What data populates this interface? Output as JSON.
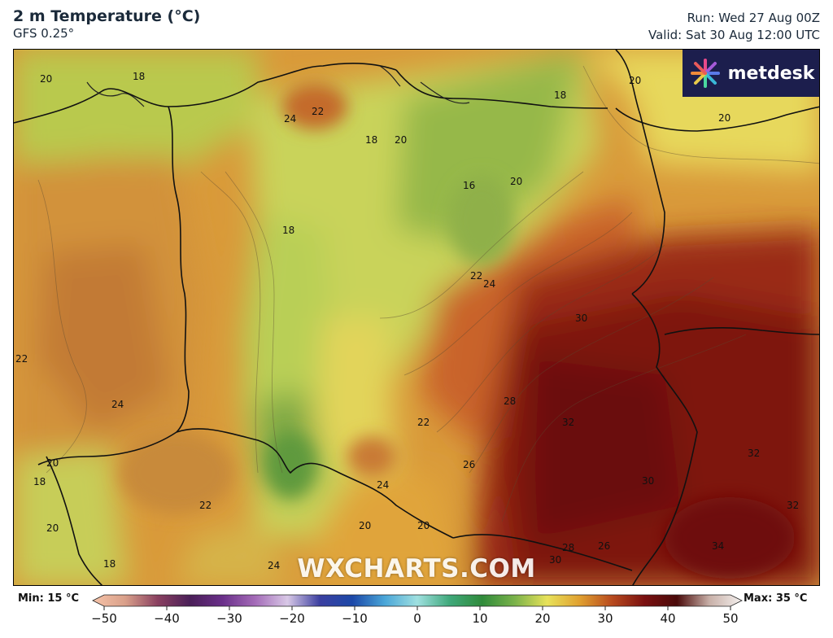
{
  "header": {
    "title": "2 m Temperature (°C)",
    "model": "GFS 0.25°",
    "run": "Run: Wed 27 Aug 00Z",
    "valid": "Valid: Sat 30 Aug 12:00 UTC"
  },
  "branding": {
    "logo_text": "metdesk",
    "watermark": "WXCHARTS.COM",
    "logo_bg": "#1c1e4d"
  },
  "legend": {
    "min_label": "Min: 15 °C",
    "max_label": "Max: 35 °C",
    "ticks": [
      "−50",
      "−40",
      "−30",
      "−20",
      "−10",
      "0",
      "10",
      "20",
      "30",
      "40",
      "50"
    ],
    "colorscale": [
      {
        "value": -50,
        "color": "#f6c3a8"
      },
      {
        "value": -45,
        "color": "#d9a08a"
      },
      {
        "value": -40,
        "color": "#8a4060"
      },
      {
        "value": -35,
        "color": "#4a1f58"
      },
      {
        "value": -30,
        "color": "#6a2f8a"
      },
      {
        "value": -25,
        "color": "#a46bb8"
      },
      {
        "value": -20,
        "color": "#d8c8e6"
      },
      {
        "value": -15,
        "color": "#3b3fa0"
      },
      {
        "value": -10,
        "color": "#1c48a8"
      },
      {
        "value": -5,
        "color": "#4aa6d8"
      },
      {
        "value": 0,
        "color": "#9fe0e0"
      },
      {
        "value": 5,
        "color": "#3fa87a"
      },
      {
        "value": 10,
        "color": "#2f8a3a"
      },
      {
        "value": 15,
        "color": "#7ab24a"
      },
      {
        "value": 20,
        "color": "#e8e25a"
      },
      {
        "value": 25,
        "color": "#e0a030"
      },
      {
        "value": 30,
        "color": "#b84a1e"
      },
      {
        "value": 35,
        "color": "#7a1010"
      },
      {
        "value": 40,
        "color": "#4a0a0a"
      },
      {
        "value": 45,
        "color": "#c8b0a8"
      },
      {
        "value": 50,
        "color": "#f4f0ee"
      }
    ]
  },
  "map_labels": [
    {
      "text": "20"
    },
    {
      "text": "18"
    },
    {
      "text": "22"
    },
    {
      "text": "24"
    },
    {
      "text": "18"
    },
    {
      "text": "20"
    },
    {
      "text": "18"
    },
    {
      "text": "20"
    },
    {
      "text": "20"
    },
    {
      "text": "16"
    },
    {
      "text": "20"
    },
    {
      "text": "18"
    },
    {
      "text": "22"
    },
    {
      "text": "24"
    },
    {
      "text": "30"
    },
    {
      "text": "22"
    },
    {
      "text": "24"
    },
    {
      "text": "28"
    },
    {
      "text": "32"
    },
    {
      "text": "22"
    },
    {
      "text": "26"
    },
    {
      "text": "32"
    },
    {
      "text": "18"
    },
    {
      "text": "20"
    },
    {
      "text": "22"
    },
    {
      "text": "24"
    },
    {
      "text": "30"
    },
    {
      "text": "32"
    },
    {
      "text": "20"
    },
    {
      "text": "20"
    },
    {
      "text": "20"
    },
    {
      "text": "28"
    },
    {
      "text": "26"
    },
    {
      "text": "34"
    },
    {
      "text": "18"
    },
    {
      "text": "24"
    },
    {
      "text": "30"
    }
  ]
}
